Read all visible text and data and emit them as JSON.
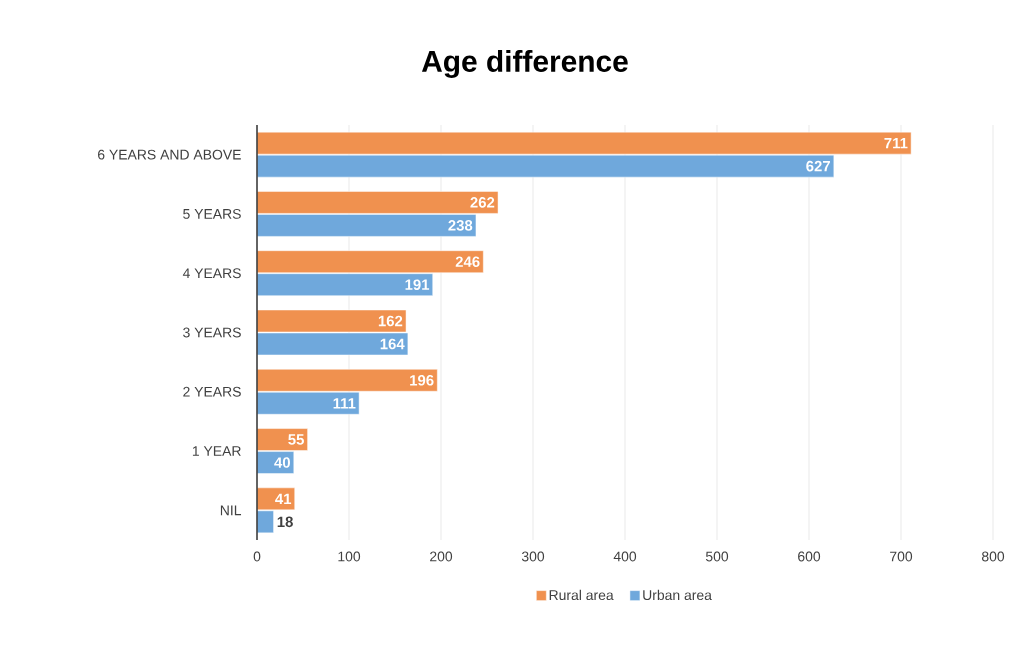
{
  "chart_data": {
    "type": "bar",
    "orientation": "horizontal",
    "title": "Age difference",
    "categories": [
      "6 YEARS AND ABOVE",
      "5 YEARS",
      "4 YEARS",
      "3 YEARS",
      "2 YEARS",
      "1 YEAR",
      "NIL"
    ],
    "series": [
      {
        "name": "Rural area",
        "color": "#f0914f",
        "values": [
          711,
          262,
          246,
          162,
          196,
          55,
          41
        ]
      },
      {
        "name": "Urban area",
        "color": "#6fa8dc",
        "values": [
          627,
          238,
          191,
          164,
          111,
          40,
          18
        ]
      }
    ],
    "xlim": [
      0,
      800
    ],
    "xticks": [
      0,
      100,
      200,
      300,
      400,
      500,
      600,
      700,
      800
    ],
    "grid": "x",
    "legend": "bottom",
    "data_labels": true
  }
}
